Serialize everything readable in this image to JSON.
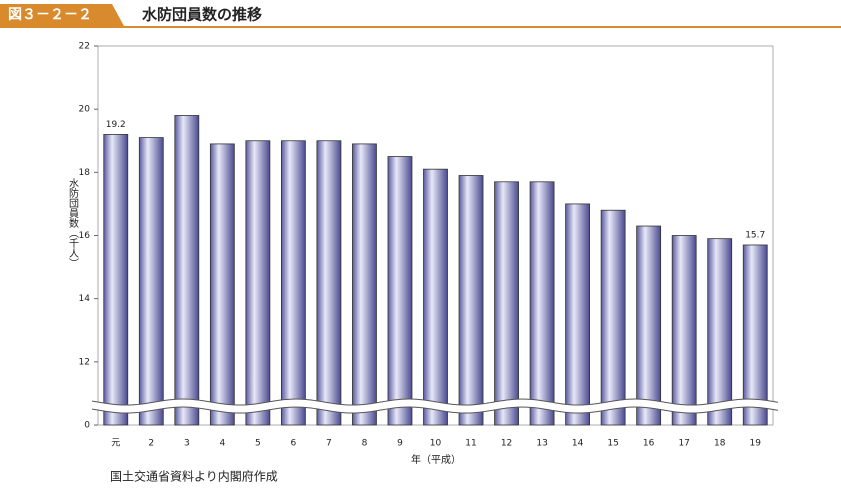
{
  "header": {
    "figure_number": "図３－２－２",
    "title": "水防団員数の推移"
  },
  "chart_data": {
    "type": "bar",
    "y_label": "水防団員数（千人）",
    "x_label": "年（平成）",
    "categories": [
      "元",
      "2",
      "3",
      "4",
      "5",
      "6",
      "7",
      "8",
      "9",
      "10",
      "11",
      "12",
      "13",
      "14",
      "15",
      "16",
      "17",
      "18",
      "19"
    ],
    "values": [
      19.2,
      19.1,
      19.8,
      18.9,
      19.0,
      19.0,
      19.0,
      18.9,
      18.5,
      18.1,
      17.9,
      17.7,
      17.7,
      17.0,
      16.8,
      16.3,
      16.0,
      15.9,
      15.7
    ],
    "value_labels": [
      "19.2",
      null,
      null,
      null,
      null,
      null,
      null,
      null,
      null,
      null,
      null,
      null,
      null,
      null,
      null,
      null,
      null,
      null,
      "15.7"
    ],
    "color": "#8d8dc8",
    "ylim": [
      0,
      22
    ],
    "yticks": [
      0,
      12,
      14,
      16,
      18,
      20,
      22
    ],
    "axis_break": true
  },
  "source": "国土交通省資料より内閣府作成"
}
